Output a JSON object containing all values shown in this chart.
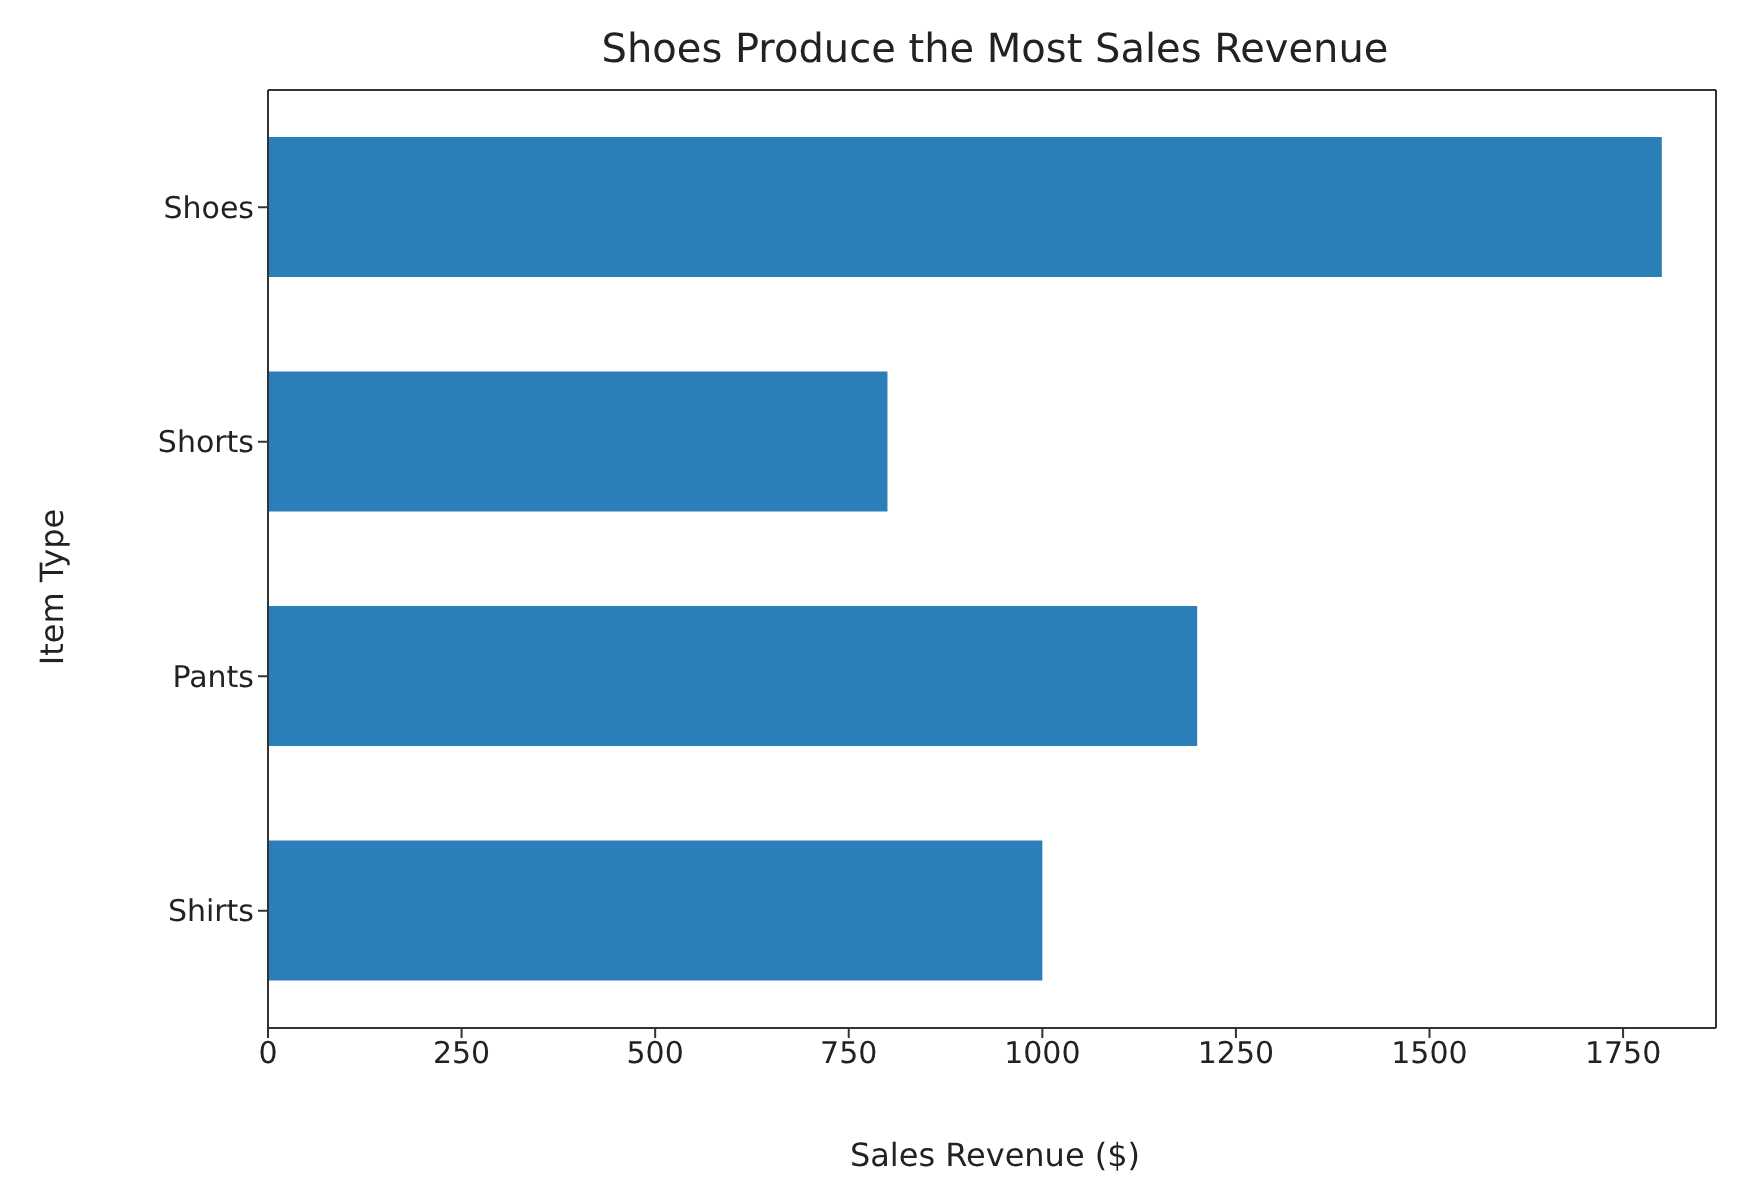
{
  "chart_data": {
    "type": "bar",
    "orientation": "horizontal",
    "title": "Shoes Produce the Most Sales Revenue",
    "xlabel": "Sales Revenue ($)",
    "ylabel": "Item Type",
    "categories": [
      "Shoes",
      "Shorts",
      "Pants",
      "Shirts"
    ],
    "values": [
      1800,
      800,
      1200,
      1000
    ],
    "color": "#2a7fb8",
    "xlim": [
      0,
      1870
    ],
    "xticks": [
      0,
      250,
      500,
      750,
      1000,
      1250,
      1500,
      1750
    ],
    "grid": false
  }
}
